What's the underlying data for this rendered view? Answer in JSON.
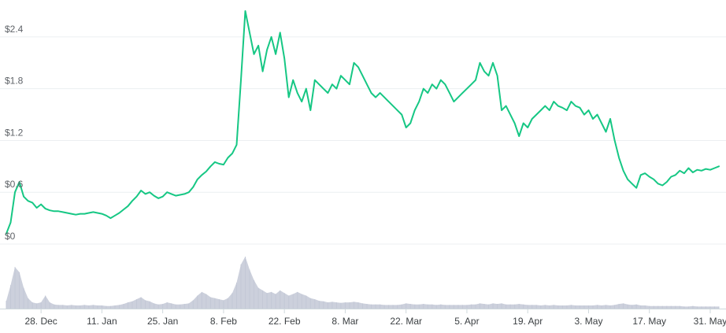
{
  "chart_data": {
    "type": "line",
    "title": "",
    "xlabel": "",
    "ylabel": "",
    "y_ticks": [
      "$0",
      "$0.6",
      "$1.2",
      "$1.8",
      "$2.4"
    ],
    "y_tick_values": [
      0,
      0.6,
      1.2,
      1.8,
      2.4
    ],
    "ylim": [
      0,
      2.7
    ],
    "x_ticks": [
      "28. Dec",
      "11. Jan",
      "25. Jan",
      "8. Feb",
      "22. Feb",
      "8. Mar",
      "22. Mar",
      "5. Apr",
      "19. Apr",
      "3. May",
      "17. May",
      "31. May"
    ],
    "x_tick_days": [
      8,
      22,
      36,
      50,
      64,
      78,
      92,
      106,
      120,
      134,
      148,
      162
    ],
    "x_range_days": [
      0,
      164
    ],
    "grid": true,
    "legend": "none",
    "series": [
      {
        "line_color": "#16c784",
        "points": [
          [
            0,
            0.12
          ],
          [
            1,
            0.25
          ],
          [
            2,
            0.6
          ],
          [
            3,
            0.72
          ],
          [
            4,
            0.55
          ],
          [
            5,
            0.5
          ],
          [
            6,
            0.48
          ],
          [
            7,
            0.42
          ],
          [
            8,
            0.46
          ],
          [
            9,
            0.41
          ],
          [
            10,
            0.39
          ],
          [
            11,
            0.38
          ],
          [
            12,
            0.38
          ],
          [
            13,
            0.37
          ],
          [
            14,
            0.36
          ],
          [
            15,
            0.35
          ],
          [
            16,
            0.34
          ],
          [
            17,
            0.35
          ],
          [
            18,
            0.35
          ],
          [
            19,
            0.36
          ],
          [
            20,
            0.37
          ],
          [
            21,
            0.36
          ],
          [
            22,
            0.35
          ],
          [
            23,
            0.33
          ],
          [
            24,
            0.3
          ],
          [
            25,
            0.33
          ],
          [
            26,
            0.36
          ],
          [
            27,
            0.4
          ],
          [
            28,
            0.44
          ],
          [
            29,
            0.5
          ],
          [
            30,
            0.55
          ],
          [
            31,
            0.62
          ],
          [
            32,
            0.58
          ],
          [
            33,
            0.6
          ],
          [
            34,
            0.56
          ],
          [
            35,
            0.53
          ],
          [
            36,
            0.55
          ],
          [
            37,
            0.6
          ],
          [
            38,
            0.58
          ],
          [
            39,
            0.56
          ],
          [
            40,
            0.57
          ],
          [
            41,
            0.58
          ],
          [
            42,
            0.6
          ],
          [
            43,
            0.66
          ],
          [
            44,
            0.75
          ],
          [
            45,
            0.8
          ],
          [
            46,
            0.84
          ],
          [
            47,
            0.9
          ],
          [
            48,
            0.95
          ],
          [
            49,
            0.93
          ],
          [
            50,
            0.92
          ],
          [
            51,
            1.0
          ],
          [
            52,
            1.05
          ],
          [
            53,
            1.15
          ],
          [
            54,
            1.9
          ],
          [
            55,
            2.7
          ],
          [
            56,
            2.45
          ],
          [
            57,
            2.2
          ],
          [
            58,
            2.3
          ],
          [
            59,
            2.0
          ],
          [
            60,
            2.25
          ],
          [
            61,
            2.4
          ],
          [
            62,
            2.2
          ],
          [
            63,
            2.45
          ],
          [
            64,
            2.15
          ],
          [
            65,
            1.7
          ],
          [
            66,
            1.9
          ],
          [
            67,
            1.75
          ],
          [
            68,
            1.65
          ],
          [
            69,
            1.8
          ],
          [
            70,
            1.55
          ],
          [
            71,
            1.9
          ],
          [
            72,
            1.85
          ],
          [
            73,
            1.8
          ],
          [
            74,
            1.75
          ],
          [
            75,
            1.85
          ],
          [
            76,
            1.8
          ],
          [
            77,
            1.95
          ],
          [
            78,
            1.9
          ],
          [
            79,
            1.85
          ],
          [
            80,
            2.1
          ],
          [
            81,
            2.05
          ],
          [
            82,
            1.95
          ],
          [
            83,
            1.85
          ],
          [
            84,
            1.75
          ],
          [
            85,
            1.7
          ],
          [
            86,
            1.75
          ],
          [
            87,
            1.7
          ],
          [
            88,
            1.65
          ],
          [
            89,
            1.6
          ],
          [
            90,
            1.55
          ],
          [
            91,
            1.5
          ],
          [
            92,
            1.35
          ],
          [
            93,
            1.4
          ],
          [
            94,
            1.55
          ],
          [
            95,
            1.65
          ],
          [
            96,
            1.8
          ],
          [
            97,
            1.75
          ],
          [
            98,
            1.85
          ],
          [
            99,
            1.8
          ],
          [
            100,
            1.9
          ],
          [
            101,
            1.85
          ],
          [
            102,
            1.75
          ],
          [
            103,
            1.65
          ],
          [
            104,
            1.7
          ],
          [
            105,
            1.75
          ],
          [
            106,
            1.8
          ],
          [
            107,
            1.85
          ],
          [
            108,
            1.9
          ],
          [
            109,
            2.1
          ],
          [
            110,
            2.0
          ],
          [
            111,
            1.95
          ],
          [
            112,
            2.1
          ],
          [
            113,
            1.95
          ],
          [
            114,
            1.55
          ],
          [
            115,
            1.6
          ],
          [
            116,
            1.5
          ],
          [
            117,
            1.4
          ],
          [
            118,
            1.25
          ],
          [
            119,
            1.4
          ],
          [
            120,
            1.35
          ],
          [
            121,
            1.45
          ],
          [
            122,
            1.5
          ],
          [
            123,
            1.55
          ],
          [
            124,
            1.6
          ],
          [
            125,
            1.55
          ],
          [
            126,
            1.65
          ],
          [
            127,
            1.6
          ],
          [
            128,
            1.58
          ],
          [
            129,
            1.55
          ],
          [
            130,
            1.65
          ],
          [
            131,
            1.6
          ],
          [
            132,
            1.58
          ],
          [
            133,
            1.5
          ],
          [
            134,
            1.55
          ],
          [
            135,
            1.45
          ],
          [
            136,
            1.5
          ],
          [
            137,
            1.4
          ],
          [
            138,
            1.3
          ],
          [
            139,
            1.45
          ],
          [
            140,
            1.2
          ],
          [
            141,
            1.0
          ],
          [
            142,
            0.85
          ],
          [
            143,
            0.75
          ],
          [
            144,
            0.7
          ],
          [
            145,
            0.65
          ],
          [
            146,
            0.8
          ],
          [
            147,
            0.82
          ],
          [
            148,
            0.78
          ],
          [
            149,
            0.75
          ],
          [
            150,
            0.7
          ],
          [
            151,
            0.68
          ],
          [
            152,
            0.72
          ],
          [
            153,
            0.78
          ],
          [
            154,
            0.8
          ],
          [
            155,
            0.85
          ],
          [
            156,
            0.82
          ],
          [
            157,
            0.88
          ],
          [
            158,
            0.83
          ],
          [
            159,
            0.86
          ],
          [
            160,
            0.85
          ],
          [
            161,
            0.87
          ],
          [
            162,
            0.86
          ],
          [
            163,
            0.88
          ],
          [
            164,
            0.9
          ]
        ]
      }
    ],
    "volume": {
      "color": "#c3c8d6",
      "points": [
        [
          0,
          0.15
        ],
        [
          1,
          0.45
        ],
        [
          2,
          0.8
        ],
        [
          3,
          0.7
        ],
        [
          4,
          0.4
        ],
        [
          5,
          0.2
        ],
        [
          6,
          0.12
        ],
        [
          7,
          0.1
        ],
        [
          8,
          0.12
        ],
        [
          9,
          0.25
        ],
        [
          10,
          0.12
        ],
        [
          11,
          0.08
        ],
        [
          12,
          0.07
        ],
        [
          13,
          0.07
        ],
        [
          14,
          0.06
        ],
        [
          15,
          0.07
        ],
        [
          16,
          0.06
        ],
        [
          17,
          0.06
        ],
        [
          18,
          0.07
        ],
        [
          19,
          0.06
        ],
        [
          20,
          0.07
        ],
        [
          21,
          0.06
        ],
        [
          22,
          0.06
        ],
        [
          23,
          0.05
        ],
        [
          24,
          0.05
        ],
        [
          25,
          0.06
        ],
        [
          26,
          0.07
        ],
        [
          27,
          0.09
        ],
        [
          28,
          0.12
        ],
        [
          29,
          0.14
        ],
        [
          30,
          0.18
        ],
        [
          31,
          0.22
        ],
        [
          32,
          0.16
        ],
        [
          33,
          0.14
        ],
        [
          34,
          0.1
        ],
        [
          35,
          0.08
        ],
        [
          36,
          0.09
        ],
        [
          37,
          0.12
        ],
        [
          38,
          0.1
        ],
        [
          39,
          0.08
        ],
        [
          40,
          0.08
        ],
        [
          41,
          0.09
        ],
        [
          42,
          0.1
        ],
        [
          43,
          0.16
        ],
        [
          44,
          0.25
        ],
        [
          45,
          0.32
        ],
        [
          46,
          0.28
        ],
        [
          47,
          0.22
        ],
        [
          48,
          0.2
        ],
        [
          49,
          0.18
        ],
        [
          50,
          0.16
        ],
        [
          51,
          0.2
        ],
        [
          52,
          0.3
        ],
        [
          53,
          0.5
        ],
        [
          54,
          0.85
        ],
        [
          55,
          1.0
        ],
        [
          56,
          0.75
        ],
        [
          57,
          0.55
        ],
        [
          58,
          0.4
        ],
        [
          59,
          0.35
        ],
        [
          60,
          0.3
        ],
        [
          61,
          0.32
        ],
        [
          62,
          0.28
        ],
        [
          63,
          0.35
        ],
        [
          64,
          0.3
        ],
        [
          65,
          0.25
        ],
        [
          66,
          0.28
        ],
        [
          67,
          0.32
        ],
        [
          68,
          0.28
        ],
        [
          69,
          0.25
        ],
        [
          70,
          0.2
        ],
        [
          71,
          0.18
        ],
        [
          72,
          0.15
        ],
        [
          73,
          0.14
        ],
        [
          74,
          0.12
        ],
        [
          75,
          0.13
        ],
        [
          76,
          0.12
        ],
        [
          77,
          0.11
        ],
        [
          78,
          0.12
        ],
        [
          79,
          0.12
        ],
        [
          80,
          0.13
        ],
        [
          81,
          0.12
        ],
        [
          82,
          0.1
        ],
        [
          83,
          0.09
        ],
        [
          84,
          0.08
        ],
        [
          85,
          0.08
        ],
        [
          86,
          0.08
        ],
        [
          87,
          0.07
        ],
        [
          88,
          0.07
        ],
        [
          89,
          0.07
        ],
        [
          90,
          0.07
        ],
        [
          91,
          0.08
        ],
        [
          92,
          0.1
        ],
        [
          93,
          0.09
        ],
        [
          94,
          0.08
        ],
        [
          95,
          0.08
        ],
        [
          96,
          0.09
        ],
        [
          97,
          0.08
        ],
        [
          98,
          0.08
        ],
        [
          99,
          0.07
        ],
        [
          100,
          0.08
        ],
        [
          101,
          0.07
        ],
        [
          102,
          0.07
        ],
        [
          103,
          0.07
        ],
        [
          104,
          0.07
        ],
        [
          105,
          0.07
        ],
        [
          106,
          0.07
        ],
        [
          107,
          0.08
        ],
        [
          108,
          0.08
        ],
        [
          109,
          0.1
        ],
        [
          110,
          0.09
        ],
        [
          111,
          0.08
        ],
        [
          112,
          0.1
        ],
        [
          113,
          0.09
        ],
        [
          114,
          0.1
        ],
        [
          115,
          0.08
        ],
        [
          116,
          0.08
        ],
        [
          117,
          0.08
        ],
        [
          118,
          0.09
        ],
        [
          119,
          0.08
        ],
        [
          120,
          0.07
        ],
        [
          121,
          0.07
        ],
        [
          122,
          0.07
        ],
        [
          123,
          0.06
        ],
        [
          124,
          0.07
        ],
        [
          125,
          0.06
        ],
        [
          126,
          0.07
        ],
        [
          127,
          0.06
        ],
        [
          128,
          0.06
        ],
        [
          129,
          0.06
        ],
        [
          130,
          0.07
        ],
        [
          131,
          0.06
        ],
        [
          132,
          0.06
        ],
        [
          133,
          0.06
        ],
        [
          134,
          0.06
        ],
        [
          135,
          0.06
        ],
        [
          136,
          0.07
        ],
        [
          137,
          0.06
        ],
        [
          138,
          0.07
        ],
        [
          139,
          0.06
        ],
        [
          140,
          0.07
        ],
        [
          141,
          0.09
        ],
        [
          142,
          0.1
        ],
        [
          143,
          0.08
        ],
        [
          144,
          0.07
        ],
        [
          145,
          0.08
        ],
        [
          146,
          0.06
        ],
        [
          147,
          0.06
        ],
        [
          148,
          0.05
        ],
        [
          149,
          0.05
        ],
        [
          150,
          0.05
        ],
        [
          151,
          0.05
        ],
        [
          152,
          0.05
        ],
        [
          153,
          0.05
        ],
        [
          154,
          0.05
        ],
        [
          155,
          0.05
        ],
        [
          156,
          0.04
        ],
        [
          157,
          0.04
        ],
        [
          158,
          0.05
        ],
        [
          159,
          0.04
        ],
        [
          160,
          0.04
        ],
        [
          161,
          0.04
        ],
        [
          162,
          0.04
        ],
        [
          163,
          0.04
        ],
        [
          164,
          0.04
        ]
      ]
    }
  }
}
